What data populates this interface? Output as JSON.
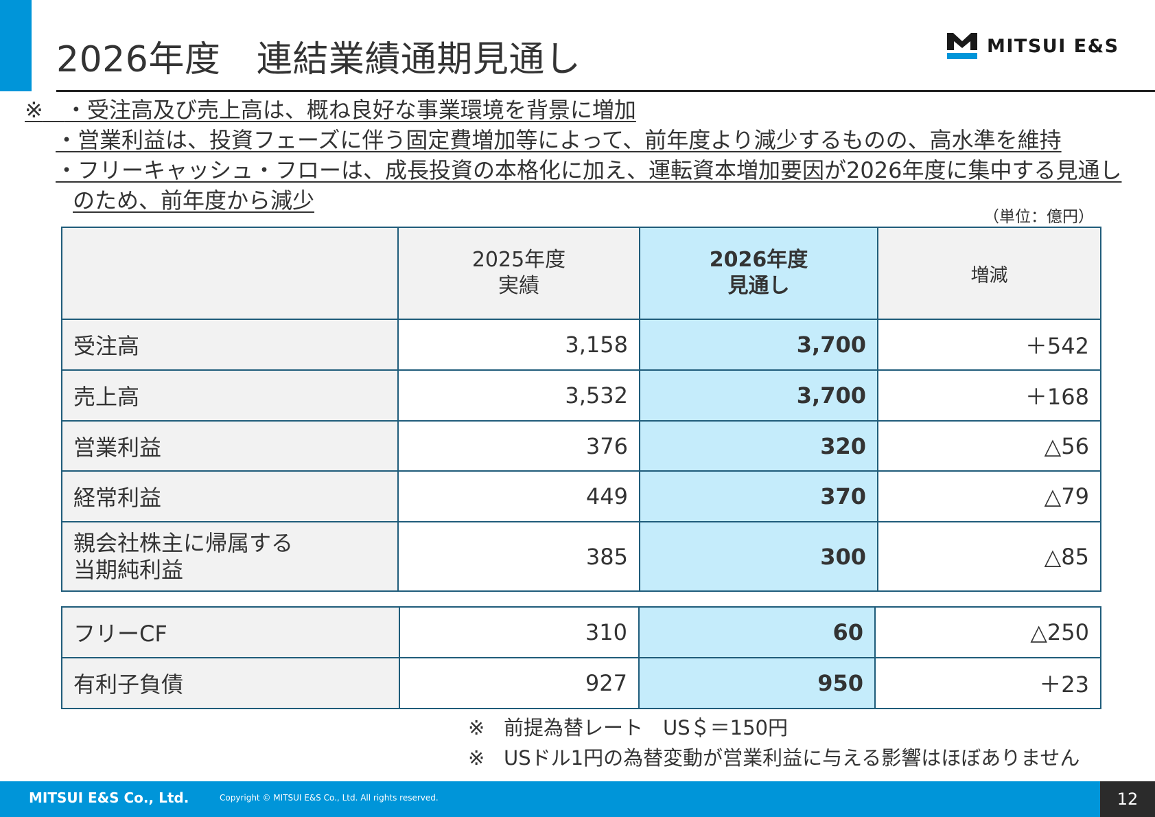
{
  "header": {
    "title": "2026年度　連結業績通期見通し",
    "logo_text": "MITSUI E&S",
    "accent_color": "#0095d9"
  },
  "notes": {
    "mark": "※",
    "line1": "・受注高及び売上高は、概ね良好な事業環境を背景に増加",
    "line2": "・営業利益は、投資フェーズに伴う固定費増加等によって、前年度より減少するものの、高水準を維持",
    "line3": "・フリーキャッシュ・フローは、成長投資の本格化に加え、運転資本増加要因が2026年度に集中する見通し",
    "line4": "のため、前年度から減少"
  },
  "unit_label": "（単位：億円）",
  "table": {
    "headers": {
      "col1_line1": "2025年度",
      "col1_line2": "実績",
      "col2_line1": "2026年度",
      "col2_line2": "見通し",
      "col3": "増減"
    },
    "rows": [
      {
        "label": "受注高",
        "actual": "3,158",
        "forecast": "3,700",
        "delta": "＋542"
      },
      {
        "label": "売上高",
        "actual": "3,532",
        "forecast": "3,700",
        "delta": "＋168"
      },
      {
        "label": "営業利益",
        "actual": "376",
        "forecast": "320",
        "delta": "△56"
      },
      {
        "label": "経常利益",
        "actual": "449",
        "forecast": "370",
        "delta": "△79"
      },
      {
        "label_line1": "親会社株主に帰属する",
        "label_line2": "当期純利益",
        "actual": "385",
        "forecast": "300",
        "delta": "△85"
      }
    ],
    "cf_rows": [
      {
        "label": "フリーCF",
        "actual": "310",
        "forecast": "60",
        "delta": "△250"
      },
      {
        "label": "有利子負債",
        "actual": "927",
        "forecast": "950",
        "delta": "＋23"
      }
    ]
  },
  "fx_notes": {
    "mark": "※",
    "line1": "前提為替レート　US＄＝150円",
    "line2": "USドル1円の為替変動が営業利益に与える影響はほぼありません"
  },
  "footer": {
    "company": "MITSUI E&S Co., Ltd.",
    "copyright": "Copyright © MITSUI E&S Co., Ltd. All rights reserved.",
    "page_number": "12"
  },
  "colors": {
    "highlight": "#c5ecfb",
    "label_bg": "#f2f2f2",
    "border": "#1f5c7a",
    "footer": "#0095d9"
  }
}
